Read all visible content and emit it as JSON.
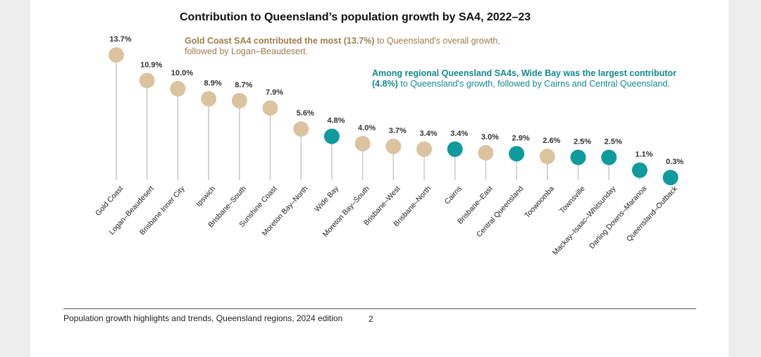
{
  "title": "Contribution to Queensland’s population growth by SA4, 2022–23",
  "annotation_gold": {
    "bold": "Gold Coast SA4 contributed the most (13.7%)",
    "rest": " to Queensland's overall growth, followed by Logan–Beaudesert."
  },
  "annotation_teal": {
    "bold": "Among regional Queensland SA4s, Wide Bay was the largest contributor (4.8%)",
    "rest": " to Queensland's growth, followed by Cairns and Central Queensland."
  },
  "footer": {
    "text": "Population growth highlights and trends, Queensland regions, 2024 edition",
    "page_number": "2"
  },
  "colors": {
    "greater_brisbane_and_gold_coast": "#dcc3a0",
    "regional": "#0f9a9d",
    "stem": "#c8c8c8",
    "gold_text": "#a07d4a",
    "teal_text": "#12898e"
  },
  "chart_data": {
    "type": "lollipop",
    "title": "Contribution to Queensland’s population growth by SA4, 2022–23",
    "xlabel": "",
    "ylabel": "",
    "value_suffix": "%",
    "ylim": [
      0,
      14
    ],
    "grid": false,
    "categories": [
      "Gold Coast",
      "Logan–Beaudesert",
      "Brisbane Inner City",
      "Ipswich",
      "Brisbane–South",
      "Sunshine Coast",
      "Moreton Bay–North",
      "Wide Bay",
      "Moreton Bay–South",
      "Brisbane–West",
      "Brisbane–North",
      "Cairns",
      "Brisbane–East",
      "Central Queensland",
      "Toowoomba",
      "Townsville",
      "Mackay–Isaac–Whitsunday",
      "Darling Downs–Maranoa",
      "Queensland–Outback"
    ],
    "values": [
      13.7,
      10.9,
      10.0,
      8.9,
      8.7,
      7.9,
      5.6,
      4.8,
      4.0,
      3.7,
      3.4,
      3.4,
      3.0,
      2.9,
      2.6,
      2.5,
      2.5,
      1.1,
      0.3
    ],
    "labels": [
      "13.7%",
      "10.9%",
      "10.0%",
      "8.9%",
      "8.7%",
      "7.9%",
      "5.6%",
      "4.8%",
      "4.0%",
      "3.7%",
      "3.4%",
      "3.4%",
      "3.0%",
      "2.9%",
      "2.6%",
      "2.5%",
      "2.5%",
      "1.1%",
      "0.3%"
    ],
    "groups": [
      "gold",
      "gold",
      "gold",
      "gold",
      "gold",
      "gold",
      "gold",
      "teal",
      "gold",
      "gold",
      "gold",
      "teal",
      "gold",
      "teal",
      "gold",
      "teal",
      "teal",
      "teal",
      "teal"
    ]
  }
}
